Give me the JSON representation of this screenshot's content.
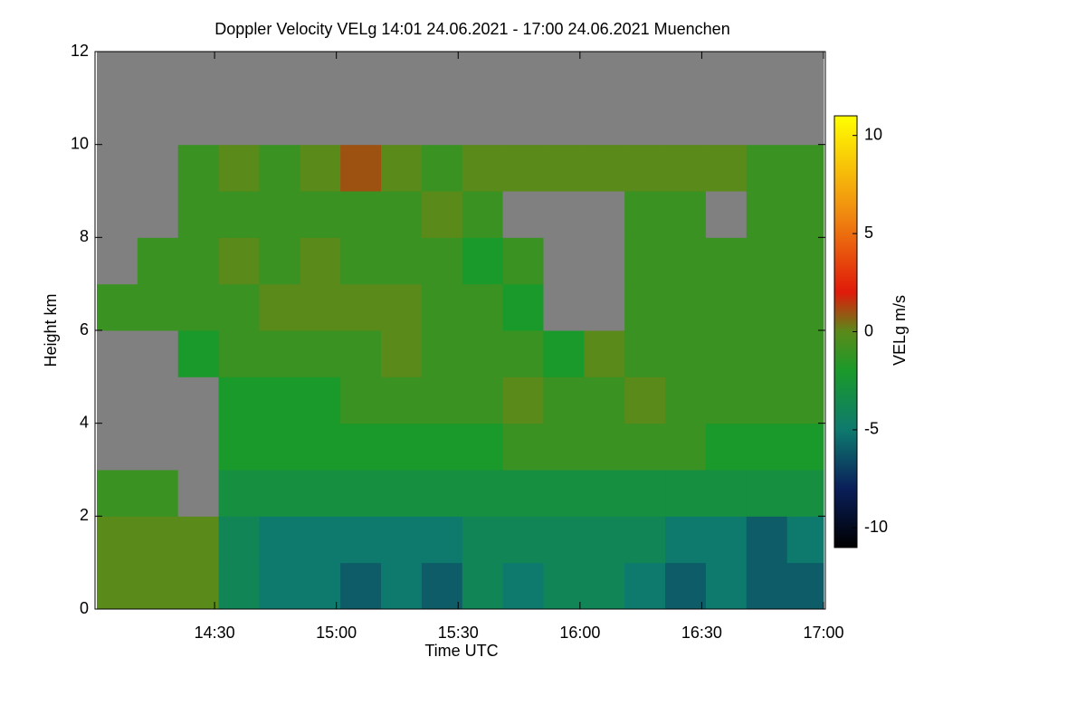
{
  "chart_data": {
    "type": "heatmap",
    "title": "Doppler Velocity VELg   14:01 24.06.2021 - 17:00 24.06.2021 Muenchen",
    "xlabel": "Time UTC",
    "ylabel": "Height km",
    "colorbar_label": "VELg m/s",
    "xlim": [
      841,
      1020
    ],
    "xticks": [
      {
        "value": 870,
        "label": "14:30"
      },
      {
        "value": 900,
        "label": "15:00"
      },
      {
        "value": 930,
        "label": "15:30"
      },
      {
        "value": 960,
        "label": "16:00"
      },
      {
        "value": 990,
        "label": "16:30"
      },
      {
        "value": 1020,
        "label": "17:00"
      }
    ],
    "ylim": [
      0,
      12
    ],
    "yticks": [
      0,
      2,
      4,
      6,
      8,
      10,
      12
    ],
    "zlim": [
      -11,
      11
    ],
    "zticks": [
      -10,
      -5,
      0,
      5,
      10
    ],
    "null_color": "#808080",
    "colorscale": [
      [
        -11,
        "#000000"
      ],
      [
        -8,
        "#0a1f5a"
      ],
      [
        -5,
        "#0e7a6e"
      ],
      [
        -2,
        "#1a9a2a"
      ],
      [
        0,
        "#5a8a1a"
      ],
      [
        2,
        "#e01a0a"
      ],
      [
        6,
        "#f08a10"
      ],
      [
        11,
        "#ffff00"
      ]
    ],
    "x": [
      841,
      851,
      861,
      871,
      881,
      891,
      901,
      911,
      921,
      931,
      941,
      951,
      961,
      971,
      981,
      991,
      1001,
      1011
    ],
    "y": [
      0,
      1,
      2,
      3,
      4,
      5,
      6,
      7,
      8,
      9,
      10,
      11
    ],
    "z": [
      [
        0,
        0,
        0,
        -4,
        -5,
        -5,
        -6,
        -5,
        -6,
        -4,
        -5,
        -4,
        -4,
        -5,
        -6,
        -5,
        -6,
        -6
      ],
      [
        0,
        0,
        0,
        -4,
        -5,
        -5,
        -5,
        -5,
        -5,
        -4,
        -4,
        -4,
        -4,
        -4,
        -5,
        -5,
        -6,
        -5
      ],
      [
        -1,
        -1,
        null,
        -3,
        -3,
        -3,
        -3,
        -3,
        -3,
        -3,
        -3,
        -3,
        -3,
        -3,
        -3,
        -3,
        -3,
        -3
      ],
      [
        null,
        null,
        null,
        -2,
        -2,
        -2,
        -2,
        -2,
        -2,
        -2,
        -1,
        -1,
        -1,
        -1,
        -1,
        -2,
        -2,
        -2
      ],
      [
        null,
        null,
        null,
        -2,
        -2,
        -2,
        -1,
        -1,
        -1,
        -1,
        0,
        -1,
        -1,
        0,
        -1,
        -1,
        -1,
        -1
      ],
      [
        null,
        null,
        -2,
        -1,
        -1,
        -1,
        -1,
        0,
        -1,
        -1,
        -1,
        -2,
        0,
        -1,
        -1,
        -1,
        -1,
        -1
      ],
      [
        -1,
        -1,
        -1,
        -1,
        0,
        0,
        0,
        0,
        -1,
        -1,
        -2,
        null,
        null,
        -1,
        -1,
        -1,
        -1,
        -1
      ],
      [
        null,
        -1,
        -1,
        0,
        -1,
        0,
        -1,
        -1,
        -1,
        -2,
        -1,
        null,
        null,
        -1,
        -1,
        -1,
        -1,
        -1
      ],
      [
        null,
        null,
        -1,
        -1,
        -1,
        -1,
        -1,
        -1,
        0,
        -1,
        null,
        null,
        null,
        -1,
        -1,
        null,
        -1,
        -1
      ],
      [
        null,
        null,
        -1,
        0,
        -1,
        0,
        1,
        0,
        -1,
        0,
        0,
        0,
        0,
        0,
        0,
        0,
        -1,
        -1
      ],
      [
        null,
        null,
        null,
        null,
        null,
        null,
        null,
        null,
        null,
        null,
        null,
        null,
        null,
        null,
        null,
        null,
        null,
        null
      ],
      [
        null,
        null,
        null,
        null,
        null,
        null,
        null,
        null,
        null,
        null,
        null,
        null,
        null,
        null,
        null,
        null,
        null,
        null
      ]
    ]
  }
}
